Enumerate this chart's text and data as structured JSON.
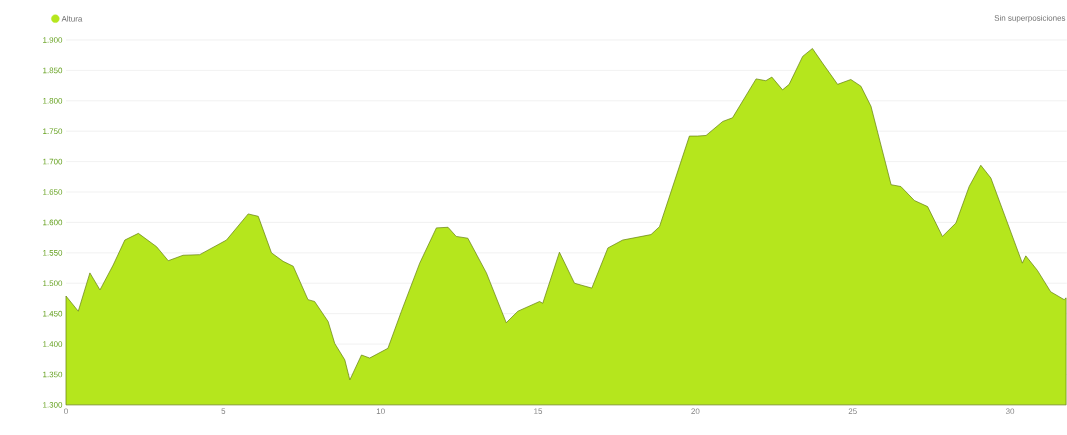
{
  "chart_data": {
    "type": "area",
    "x": [
      0,
      0.39,
      0.76,
      1.08,
      1.5,
      1.87,
      2.3,
      2.88,
      3.25,
      3.72,
      4.25,
      5.1,
      5.79,
      6.11,
      6.53,
      6.9,
      7.22,
      7.69,
      7.9,
      8.33,
      8.54,
      8.86,
      9.02,
      9.39,
      9.65,
      10.23,
      10.66,
      11.24,
      11.77,
      12.14,
      12.4,
      12.77,
      13.36,
      13.99,
      14.36,
      15.05,
      15.15,
      15.68,
      16.16,
      16.71,
      17.22,
      17.69,
      18.59,
      18.86,
      19.81,
      20.07,
      20.34,
      20.87,
      21.18,
      21.93,
      22.24,
      22.43,
      22.77,
      22.98,
      23.41,
      23.72,
      24.04,
      24.52,
      24.94,
      25.26,
      25.58,
      26.22,
      26.53,
      26.96,
      27.38,
      27.85,
      28.28,
      28.7,
      29.07,
      29.39,
      30.39,
      30.5,
      30.87,
      31.29,
      31.72,
      31.78
    ],
    "series": [
      {
        "name": "Altura",
        "color": "#b5e61d",
        "values": [
          1479,
          1454,
          1517,
          1489,
          1530,
          1571,
          1582,
          1560,
          1537,
          1546,
          1547,
          1571,
          1614,
          1610,
          1550,
          1536,
          1528,
          1473,
          1470,
          1437,
          1401,
          1374,
          1341,
          1382,
          1377,
          1393,
          1454,
          1533,
          1591,
          1592,
          1577,
          1574,
          1517,
          1435,
          1454,
          1470,
          1467,
          1551,
          1500,
          1492,
          1558,
          1571,
          1580,
          1593,
          1742,
          1742,
          1743,
          1766,
          1772,
          1836,
          1833,
          1839,
          1818,
          1827,
          1873,
          1886,
          1862,
          1827,
          1835,
          1824,
          1791,
          1662,
          1659,
          1636,
          1626,
          1577,
          1599,
          1659,
          1694,
          1673,
          1533,
          1545,
          1521,
          1486,
          1473,
          1476
        ]
      }
    ],
    "xlim": [
      0,
      31.8
    ],
    "ylim": [
      1300,
      1900
    ],
    "xticks": [
      0,
      5,
      10,
      15,
      20,
      25,
      30
    ],
    "yticks": [
      {
        "value": 1300,
        "label": "1.300"
      },
      {
        "value": 1350,
        "label": "1.350"
      },
      {
        "value": 1400,
        "label": "1.400"
      },
      {
        "value": 1450,
        "label": "1.450"
      },
      {
        "value": 1500,
        "label": "1.500"
      },
      {
        "value": 1550,
        "label": "1.550"
      },
      {
        "value": 1600,
        "label": "1.600"
      },
      {
        "value": 1650,
        "label": "1.650"
      },
      {
        "value": 1700,
        "label": "1.700"
      },
      {
        "value": 1750,
        "label": "1.750"
      },
      {
        "value": 1800,
        "label": "1.800"
      },
      {
        "value": 1850,
        "label": "1.850"
      },
      {
        "value": 1900,
        "label": "1.900"
      }
    ],
    "grid": "y",
    "legend": "top left",
    "annotations": [
      "Sin superposiciones"
    ]
  }
}
